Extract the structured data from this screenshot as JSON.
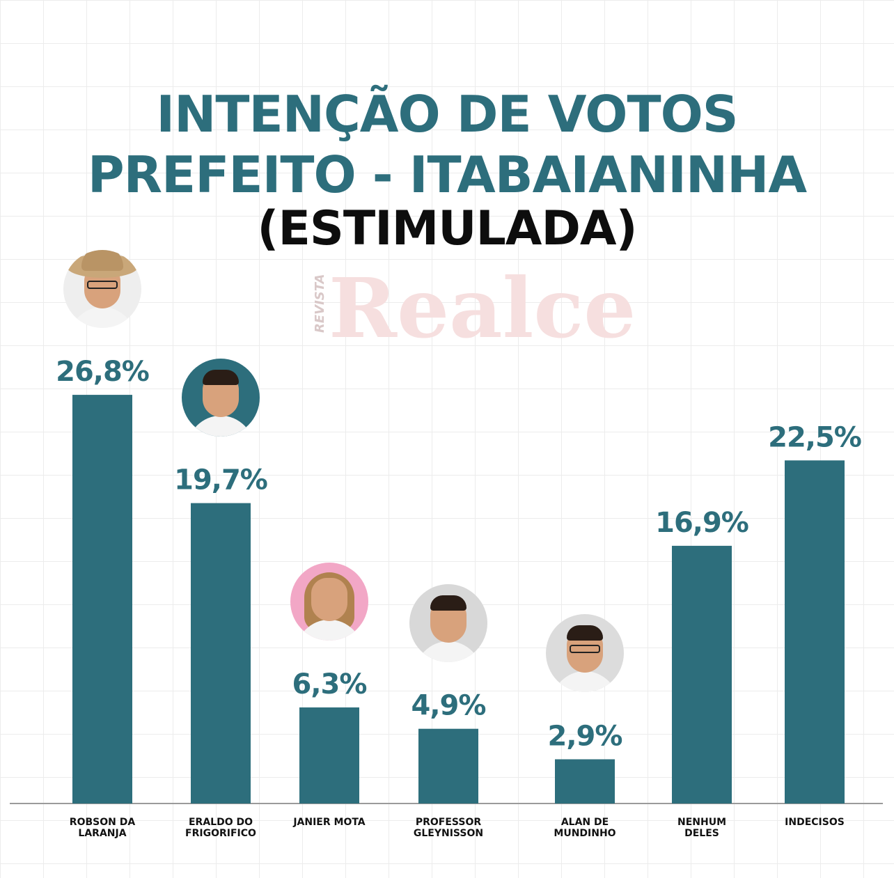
{
  "title": {
    "line1": "INTENÇÃO DE VOTOS",
    "line2": "PREFEITO - ITABAIANINHA",
    "line3": "(ESTIMULADA)"
  },
  "watermark": {
    "small": "REVISTA",
    "big": "Realce"
  },
  "colors": {
    "bar": "#2d6e7c",
    "title": "#2d6e7c",
    "value_label": "#2d6e7c",
    "category_label": "#111111",
    "axis": "#9a9a9a"
  },
  "chart_data": {
    "type": "bar",
    "categories": [
      "ROBSON DA LARANJA",
      "ERALDO DO FRIGORIFICO",
      "JANIER MOTA",
      "PROFESSOR GLEYNISSON",
      "ALAN DE MUNDINHO",
      "NENHUM DELES",
      "INDECISOS"
    ],
    "category_lines": [
      [
        "ROBSON DA",
        "LARANJA"
      ],
      [
        "ERALDO DO",
        "FRIGORIFICO"
      ],
      [
        "JANIER MOTA"
      ],
      [
        "PROFESSOR",
        "GLEYNISSON"
      ],
      [
        "ALAN DE",
        "MUNDINHO"
      ],
      [
        "NENHUM",
        "DELES"
      ],
      [
        "INDECISOS"
      ]
    ],
    "values": [
      26.8,
      19.7,
      6.3,
      4.9,
      2.9,
      16.9,
      22.5
    ],
    "value_labels": [
      "26,8%",
      "19,7%",
      "6,3%",
      "4,9%",
      "2,9%",
      "16,9%",
      "22,5%"
    ],
    "photos": [
      "hat",
      "man",
      "woman",
      "man",
      "glasses",
      "none",
      "none"
    ],
    "photo_bg": [
      "#eeeeee",
      "#2d6e7c",
      "#f2a7c6",
      "#d8d8d8",
      "#dcdcdc",
      "",
      ""
    ],
    "unit": "%"
  }
}
